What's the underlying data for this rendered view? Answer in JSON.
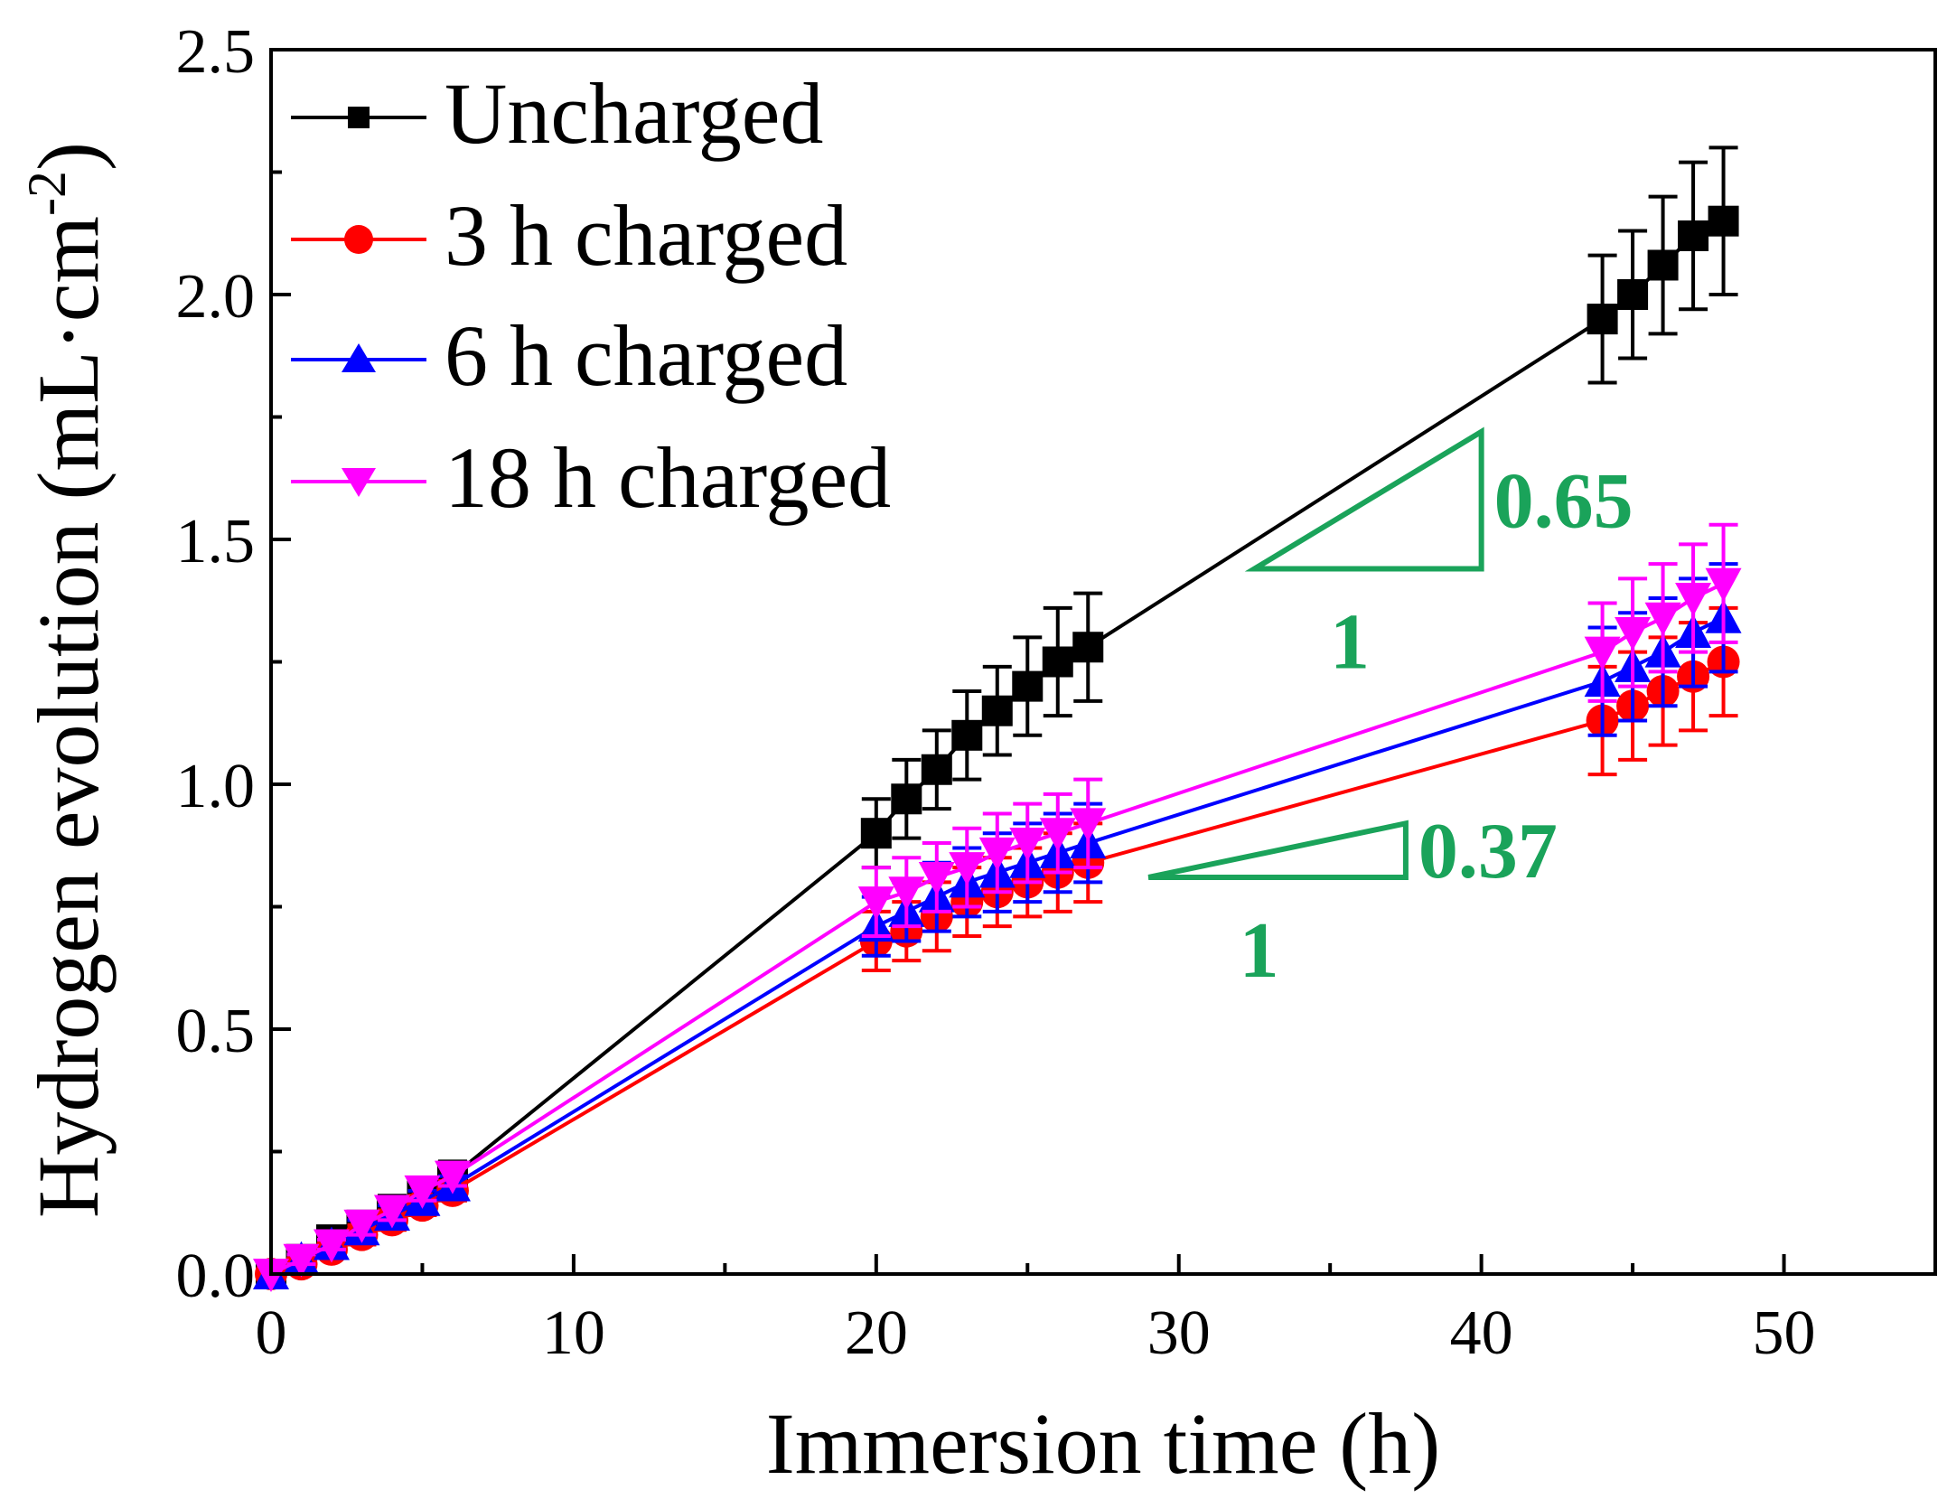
{
  "chart_data": {
    "type": "line",
    "xlabel": "Immersion time (h)",
    "ylabel_main": "Hydrogen evolution (mL·cm",
    "ylabel_sup": "-2",
    "ylabel_close": ")",
    "xlim": [
      0,
      55
    ],
    "ylim": [
      0,
      2.5
    ],
    "xticks": [
      "0",
      "10",
      "20",
      "30",
      "40",
      "50"
    ],
    "xtick_values": [
      0,
      10,
      20,
      30,
      40,
      50
    ],
    "yticks": [
      "0.0",
      "0.5",
      "1.0",
      "1.5",
      "2.0",
      "2.5"
    ],
    "ytick_values": [
      0,
      0.5,
      1.0,
      1.5,
      2.0,
      2.5
    ],
    "grid": false,
    "legend_position": "top-left",
    "series": [
      {
        "name": "Uncharged",
        "color": "#000000",
        "marker": "square",
        "x": [
          0,
          1,
          2,
          3,
          4,
          5,
          6,
          20,
          21,
          22,
          23,
          24,
          25,
          26,
          27,
          44,
          45,
          46,
          47,
          48
        ],
        "y": [
          0,
          0.03,
          0.07,
          0.1,
          0.13,
          0.16,
          0.2,
          0.9,
          0.97,
          1.03,
          1.1,
          1.15,
          1.2,
          1.25,
          1.28,
          1.95,
          2.0,
          2.06,
          2.12,
          2.15
        ],
        "err": [
          0,
          0.01,
          0.02,
          0.02,
          0.03,
          0.03,
          0.03,
          0.07,
          0.08,
          0.08,
          0.09,
          0.09,
          0.1,
          0.11,
          0.11,
          0.13,
          0.13,
          0.14,
          0.15,
          0.15
        ]
      },
      {
        "name": "3 h charged",
        "color": "#ff0000",
        "marker": "circle",
        "x": [
          0,
          1,
          2,
          3,
          4,
          5,
          6,
          20,
          21,
          22,
          23,
          24,
          25,
          26,
          27,
          44,
          45,
          46,
          47,
          48
        ],
        "y": [
          0,
          0.02,
          0.05,
          0.08,
          0.11,
          0.14,
          0.17,
          0.68,
          0.7,
          0.73,
          0.76,
          0.78,
          0.8,
          0.82,
          0.84,
          1.13,
          1.16,
          1.19,
          1.22,
          1.25
        ],
        "err": [
          0,
          0.01,
          0.01,
          0.02,
          0.02,
          0.02,
          0.02,
          0.06,
          0.06,
          0.07,
          0.07,
          0.07,
          0.07,
          0.08,
          0.08,
          0.11,
          0.11,
          0.11,
          0.11,
          0.11
        ]
      },
      {
        "name": "6 h charged",
        "color": "#0000ff",
        "marker": "triangle-up",
        "x": [
          0,
          1,
          2,
          3,
          4,
          5,
          6,
          20,
          21,
          22,
          23,
          24,
          25,
          26,
          27,
          44,
          45,
          46,
          47,
          48
        ],
        "y": [
          0,
          0.03,
          0.06,
          0.09,
          0.12,
          0.15,
          0.18,
          0.71,
          0.74,
          0.77,
          0.8,
          0.82,
          0.84,
          0.86,
          0.88,
          1.21,
          1.24,
          1.27,
          1.31,
          1.34
        ],
        "err": [
          0,
          0.01,
          0.01,
          0.02,
          0.02,
          0.02,
          0.02,
          0.06,
          0.06,
          0.07,
          0.07,
          0.08,
          0.08,
          0.08,
          0.08,
          0.11,
          0.11,
          0.11,
          0.11,
          0.11
        ]
      },
      {
        "name": "18 h charged",
        "color": "#ff00ff",
        "marker": "triangle-down",
        "x": [
          0,
          1,
          2,
          3,
          4,
          5,
          6,
          20,
          21,
          22,
          23,
          24,
          25,
          26,
          27,
          44,
          45,
          46,
          47,
          48
        ],
        "y": [
          0,
          0.03,
          0.06,
          0.1,
          0.13,
          0.17,
          0.2,
          0.76,
          0.78,
          0.81,
          0.83,
          0.86,
          0.88,
          0.9,
          0.92,
          1.27,
          1.31,
          1.34,
          1.38,
          1.41
        ],
        "err": [
          0,
          0.01,
          0.01,
          0.02,
          0.02,
          0.02,
          0.02,
          0.07,
          0.07,
          0.07,
          0.08,
          0.08,
          0.08,
          0.08,
          0.09,
          0.1,
          0.11,
          0.11,
          0.11,
          0.12
        ]
      }
    ],
    "annotations": [
      {
        "type": "slope-triangle",
        "color": "#1aa35a",
        "slope_label": "0.65",
        "run_label": "1",
        "x0": 32.5,
        "x1": 40,
        "y0": 1.44,
        "y1": 1.72
      },
      {
        "type": "slope-triangle",
        "color": "#1aa35a",
        "slope_label": "0.37",
        "run_label": "1",
        "x0": 29,
        "x1": 37.5,
        "y0": 0.81,
        "y1": 0.92
      }
    ]
  }
}
